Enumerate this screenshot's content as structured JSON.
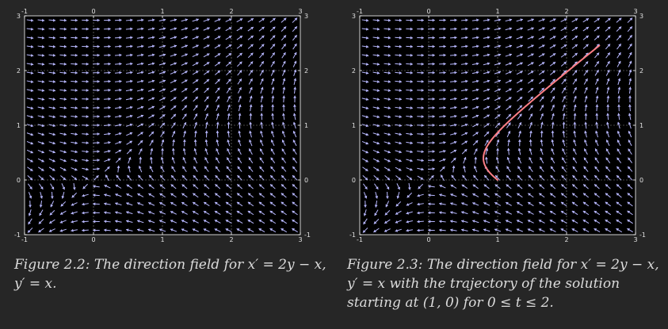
{
  "figures": [
    {
      "caption": "Figure 2.2: The direction field for x′ = 2y − x, y′ = x.",
      "chart_data": {
        "type": "direction-field",
        "field": {
          "dx": "2*y - x",
          "dy": "x"
        },
        "xlim": [
          -1,
          3
        ],
        "ylim": [
          -1,
          3
        ],
        "x_ticks": [
          "-1",
          "0",
          "1",
          "2",
          "3"
        ],
        "y_ticks": [
          "-1",
          "0",
          "1",
          "2",
          "3"
        ],
        "grid": true,
        "arrow_grid": {
          "nx": 25,
          "ny": 25
        },
        "colors": {
          "background": "#000000",
          "arrow": "#b8b8ff",
          "grid": "#bdbdbd"
        }
      }
    },
    {
      "caption": "Figure 2.3: The direction field for x′ = 2y − x, y′ = x with the trajectory of the solution starting at (1, 0) for 0 ≤ t ≤ 2.",
      "chart_data": {
        "type": "direction-field",
        "field": {
          "dx": "2*y - x",
          "dy": "x"
        },
        "xlim": [
          -1,
          3
        ],
        "ylim": [
          -1,
          3
        ],
        "x_ticks": [
          "-1",
          "0",
          "1",
          "2",
          "3"
        ],
        "y_ticks": [
          "-1",
          "0",
          "1",
          "2",
          "3"
        ],
        "grid": true,
        "arrow_grid": {
          "nx": 25,
          "ny": 25
        },
        "trajectory": {
          "start": [
            1,
            0
          ],
          "t_range": [
            0,
            2
          ],
          "color": "#ff7f86"
        },
        "colors": {
          "background": "#000000",
          "arrow": "#b8b8ff",
          "grid": "#bdbdbd"
        }
      }
    }
  ]
}
